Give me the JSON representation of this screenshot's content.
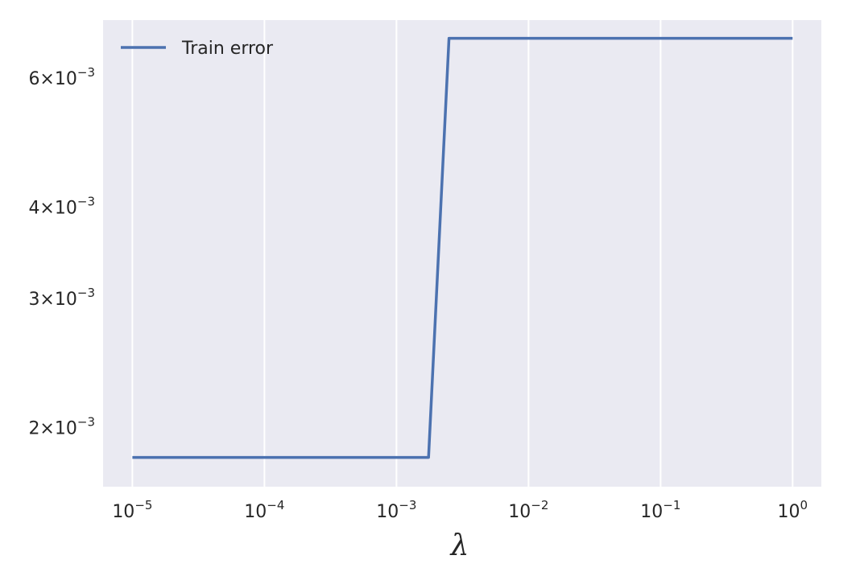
{
  "chart_data": {
    "type": "line",
    "title": "",
    "xlabel": "λ",
    "ylabel": "",
    "x_scale": "log",
    "y_scale": "log",
    "grid": "vertical",
    "legend_position": "top-left",
    "xlim": [
      6e-06,
      1.65
    ],
    "ylim": [
      0.00166,
      0.0072
    ],
    "x_ticks": [
      {
        "value": 1e-05,
        "base": "10",
        "exp": "−5"
      },
      {
        "value": 0.0001,
        "base": "10",
        "exp": "−4"
      },
      {
        "value": 0.001,
        "base": "10",
        "exp": "−3"
      },
      {
        "value": 0.01,
        "base": "10",
        "exp": "−2"
      },
      {
        "value": 0.1,
        "base": "10",
        "exp": "−1"
      },
      {
        "value": 1,
        "base": "10",
        "exp": "0"
      }
    ],
    "y_ticks": [
      {
        "value": 0.002,
        "mant": "2",
        "base": "×10",
        "exp": "−3"
      },
      {
        "value": 0.003,
        "mant": "3",
        "base": "×10",
        "exp": "−3"
      },
      {
        "value": 0.004,
        "mant": "4",
        "base": "×10",
        "exp": "−3"
      },
      {
        "value": 0.006,
        "mant": "6",
        "base": "×10",
        "exp": "−3"
      }
    ],
    "colors": {
      "plot_background": "#eaeaf2",
      "grid": "#ffffff",
      "series": "#4c72b0",
      "text": "#262626"
    },
    "series": [
      {
        "name": "Train error",
        "x": [
          1e-05,
          0.00175,
          0.0025,
          1
        ],
        "y": [
          0.00182,
          0.00182,
          0.0068,
          0.0068
        ]
      }
    ]
  }
}
